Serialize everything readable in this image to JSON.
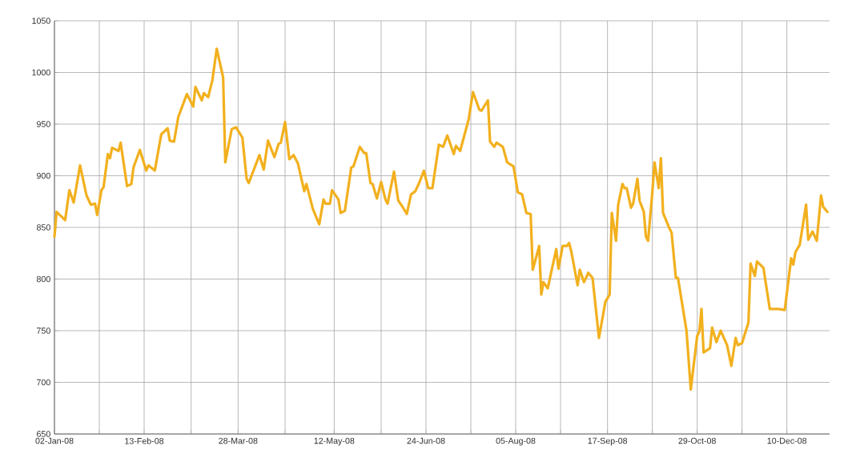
{
  "chart_data": {
    "type": "line",
    "color": "#f2b01e",
    "grid": true,
    "marker": "none",
    "line_style": "solid",
    "xlim": [
      "2008-01-02",
      "2008-12-30"
    ],
    "ylim": [
      650,
      1050
    ],
    "yticks": [
      650,
      700,
      750,
      800,
      850,
      900,
      950,
      1000,
      1050
    ],
    "xticks": [
      {
        "value": "2008-01-02",
        "label": "02-Jan-08"
      },
      {
        "value": "2008-01-23",
        "label": null
      },
      {
        "value": "2008-02-13",
        "label": "13-Feb-08"
      },
      {
        "value": "2008-03-06",
        "label": null
      },
      {
        "value": "2008-03-28",
        "label": "28-Mar-08"
      },
      {
        "value": "2008-04-19",
        "label": null
      },
      {
        "value": "2008-05-12",
        "label": "12-May-08"
      },
      {
        "value": "2008-06-03",
        "label": null
      },
      {
        "value": "2008-06-24",
        "label": "24-Jun-08"
      },
      {
        "value": "2008-07-15",
        "label": null
      },
      {
        "value": "2008-08-05",
        "label": "05-Aug-08"
      },
      {
        "value": "2008-08-26",
        "label": null
      },
      {
        "value": "2008-09-17",
        "label": "17-Sep-08"
      },
      {
        "value": "2008-10-08",
        "label": null
      },
      {
        "value": "2008-10-29",
        "label": "29-Oct-08"
      },
      {
        "value": "2008-11-19",
        "label": null
      },
      {
        "value": "2008-12-10",
        "label": "10-Dec-08"
      }
    ],
    "x": [
      "2008-01-02",
      "2008-01-03",
      "2008-01-07",
      "2008-01-09",
      "2008-01-11",
      "2008-01-14",
      "2008-01-17",
      "2008-01-19",
      "2008-01-21",
      "2008-01-22",
      "2008-01-24",
      "2008-01-25",
      "2008-01-27",
      "2008-01-28",
      "2008-01-29",
      "2008-02-01",
      "2008-02-02",
      "2008-02-05",
      "2008-02-07",
      "2008-02-08",
      "2008-02-11",
      "2008-02-14",
      "2008-02-15",
      "2008-02-18",
      "2008-02-21",
      "2008-02-24",
      "2008-02-25",
      "2008-02-27",
      "2008-02-29",
      "2008-03-04",
      "2008-03-07",
      "2008-03-08",
      "2008-03-11",
      "2008-03-12",
      "2008-03-14",
      "2008-03-16",
      "2008-03-18",
      "2008-03-21",
      "2008-03-22",
      "2008-03-25",
      "2008-03-27",
      "2008-03-30",
      "2008-04-01",
      "2008-04-02",
      "2008-04-07",
      "2008-04-09",
      "2008-04-11",
      "2008-04-14",
      "2008-04-16",
      "2008-04-17",
      "2008-04-19",
      "2008-04-21",
      "2008-04-23",
      "2008-04-25",
      "2008-04-28",
      "2008-04-29",
      "2008-05-02",
      "2008-05-05",
      "2008-05-07",
      "2008-05-08",
      "2008-05-10",
      "2008-05-11",
      "2008-05-14",
      "2008-05-15",
      "2008-05-17",
      "2008-05-20",
      "2008-05-21",
      "2008-05-24",
      "2008-05-26",
      "2008-05-27",
      "2008-05-29",
      "2008-05-30",
      "2008-06-01",
      "2008-06-03",
      "2008-06-05",
      "2008-06-06",
      "2008-06-09",
      "2008-06-11",
      "2008-06-13",
      "2008-06-15",
      "2008-06-17",
      "2008-06-19",
      "2008-06-21",
      "2008-06-23",
      "2008-06-25",
      "2008-06-27",
      "2008-06-30",
      "2008-07-02",
      "2008-07-04",
      "2008-07-07",
      "2008-07-08",
      "2008-07-10",
      "2008-07-14",
      "2008-07-16",
      "2008-07-19",
      "2008-07-20",
      "2008-07-23",
      "2008-07-24",
      "2008-07-26",
      "2008-07-27",
      "2008-07-30",
      "2008-08-01",
      "2008-08-04",
      "2008-08-06",
      "2008-08-08",
      "2008-08-10",
      "2008-08-12",
      "2008-08-13",
      "2008-08-16",
      "2008-08-17",
      "2008-08-18",
      "2008-08-20",
      "2008-08-24",
      "2008-08-25",
      "2008-08-27",
      "2008-08-29",
      "2008-08-30",
      "2008-08-31",
      "2008-09-03",
      "2008-09-04",
      "2008-09-06",
      "2008-09-08",
      "2008-09-10",
      "2008-09-13",
      "2008-09-16",
      "2008-09-18",
      "2008-09-19",
      "2008-09-21",
      "2008-09-22",
      "2008-09-24",
      "2008-09-25",
      "2008-09-26",
      "2008-09-28",
      "2008-09-29",
      "2008-10-01",
      "2008-10-02",
      "2008-10-04",
      "2008-10-05",
      "2008-10-06",
      "2008-10-08",
      "2008-10-09",
      "2008-10-11",
      "2008-10-12",
      "2008-10-13",
      "2008-10-16",
      "2008-10-17",
      "2008-10-19",
      "2008-10-20",
      "2008-10-24",
      "2008-10-26",
      "2008-10-29",
      "2008-10-30",
      "2008-10-31",
      "2008-11-01",
      "2008-11-04",
      "2008-11-05",
      "2008-11-07",
      "2008-11-09",
      "2008-11-12",
      "2008-11-14",
      "2008-11-16",
      "2008-11-17",
      "2008-11-19",
      "2008-11-22",
      "2008-11-23",
      "2008-11-25",
      "2008-11-26",
      "2008-11-29",
      "2008-12-02",
      "2008-12-06",
      "2008-12-09",
      "2008-12-12",
      "2008-12-13",
      "2008-12-14",
      "2008-12-16",
      "2008-12-19",
      "2008-12-20",
      "2008-12-22",
      "2008-12-24",
      "2008-12-26",
      "2008-12-27",
      "2008-12-29"
    ],
    "values": [
      841,
      865,
      857,
      886,
      874,
      910,
      881,
      872,
      873,
      862,
      886,
      889,
      921,
      917,
      927,
      924,
      932,
      890,
      892,
      908,
      925,
      905,
      910,
      905,
      940,
      946,
      934,
      933,
      957,
      979,
      967,
      986,
      973,
      980,
      976,
      993,
      1023,
      995,
      913,
      945,
      947,
      937,
      897,
      893,
      920,
      906,
      934,
      918,
      931,
      932,
      952,
      916,
      920,
      912,
      885,
      892,
      868,
      853,
      877,
      873,
      873,
      886,
      877,
      864,
      866,
      908,
      909,
      928,
      922,
      922,
      893,
      892,
      878,
      894,
      877,
      873,
      904,
      876,
      870,
      863,
      882,
      885,
      894,
      905,
      888,
      888,
      930,
      928,
      939,
      921,
      929,
      924,
      955,
      981,
      964,
      963,
      973,
      933,
      928,
      932,
      928,
      913,
      909,
      884,
      882,
      864,
      863,
      809,
      832,
      785,
      797,
      791,
      829,
      810,
      832,
      832,
      835,
      827,
      794,
      809,
      797,
      806,
      801,
      743,
      778,
      785,
      864,
      837,
      872,
      892,
      888,
      888,
      869,
      873,
      897,
      876,
      865,
      841,
      837,
      884,
      913,
      888,
      917,
      864,
      849,
      845,
      801,
      801,
      750,
      693,
      745,
      749,
      771,
      729,
      733,
      753,
      739,
      750,
      736,
      716,
      743,
      736,
      738,
      758,
      815,
      803,
      817,
      811,
      771,
      771,
      770,
      820,
      814,
      826,
      833,
      872,
      838,
      846,
      837,
      881,
      870,
      865
    ]
  }
}
